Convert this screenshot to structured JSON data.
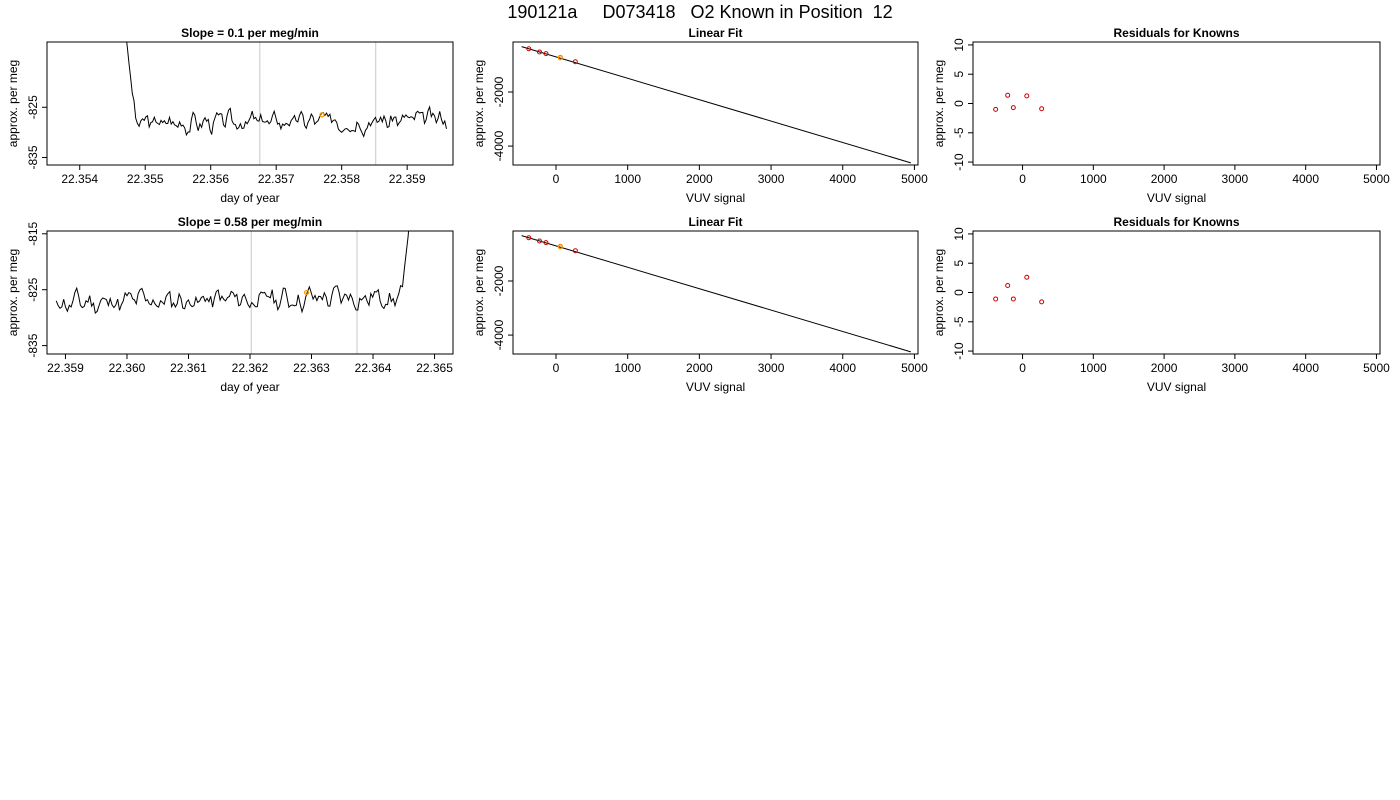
{
  "page_title": "190121a     D073418   O2 Known in Position  12",
  "colors": {
    "trace": "#000000",
    "marker": "#cc0000",
    "highlight": "#ff9900",
    "vline": "#c8c8c8",
    "frame": "#000000"
  },
  "chart_data": [
    {
      "id": "ts1",
      "type": "line",
      "title": "Slope =  0.1  per meg/min",
      "xlabel": "day of year",
      "ylabel": "approx. per meg",
      "xlim": [
        22.3535,
        22.3597
      ],
      "ylim": [
        -836.5,
        -812
      ],
      "xticks": [
        "22.354",
        "22.355",
        "22.356",
        "22.357",
        "22.358",
        "22.359"
      ],
      "yticks": [
        "-825",
        "-835"
      ],
      "x_start": 22.3547,
      "x_end": 22.3596,
      "seed": 3,
      "base": -827.8,
      "trend": 0.8,
      "amp": 1.6,
      "spike": "start",
      "spike_value": -810,
      "vlines": [
        22.35675,
        22.35852
      ],
      "highlight_point": [
        22.3577,
        -826.5
      ]
    },
    {
      "id": "fit1",
      "type": "line",
      "title": "Linear Fit",
      "xlabel": "VUV signal",
      "ylabel": "approx. per meg",
      "xlim": [
        -600,
        5050
      ],
      "ylim": [
        -4700,
        -150
      ],
      "xticks": [
        "0",
        "1000",
        "2000",
        "3000",
        "4000",
        "5000"
      ],
      "yticks": [
        "-2000",
        "-4000"
      ],
      "line": [
        [
          -480,
          -320
        ],
        [
          4950,
          -4620
        ]
      ],
      "points": [
        [
          -380,
          -400
        ],
        [
          -230,
          -520
        ],
        [
          -140,
          -580
        ],
        [
          60,
          -720
        ],
        [
          270,
          -880
        ]
      ],
      "highlight_point": [
        60,
        -730
      ]
    },
    {
      "id": "res1",
      "type": "scatter",
      "title": "Residuals for Knowns",
      "xlabel": "VUV signal",
      "ylabel": "approx. per meg",
      "xlim": [
        -700,
        5050
      ],
      "ylim": [
        -10.5,
        10.5
      ],
      "xticks": [
        "0",
        "1000",
        "2000",
        "3000",
        "4000",
        "5000"
      ],
      "yticks": [
        "10",
        "5",
        "0",
        "-5",
        "-10"
      ],
      "points": [
        [
          -380,
          -1.0
        ],
        [
          -210,
          1.4
        ],
        [
          -130,
          -0.7
        ],
        [
          60,
          1.3
        ],
        [
          270,
          -0.9
        ]
      ]
    },
    {
      "id": "ts2",
      "type": "line",
      "title": "Slope =  0.58  per meg/min",
      "xlabel": "day of year",
      "ylabel": "approx. per meg",
      "xlim": [
        22.3587,
        22.3653
      ],
      "ylim": [
        -836.5,
        -814.5
      ],
      "xticks": [
        "22.359",
        "22.360",
        "22.361",
        "22.362",
        "22.363",
        "22.364",
        "22.365"
      ],
      "yticks": [
        "-815",
        "-825",
        "-835"
      ],
      "x_start": 22.35885,
      "x_end": 22.3646,
      "seed": 11,
      "base": -826.8,
      "trend": 1.2,
      "amp": 1.7,
      "spike": "end",
      "spike_value": -813,
      "vlines": [
        22.36202,
        22.36374
      ],
      "highlight_point": [
        22.36292,
        -825.5
      ]
    },
    {
      "id": "fit2",
      "type": "line",
      "title": "Linear Fit",
      "xlabel": "VUV signal",
      "ylabel": "approx. per meg",
      "xlim": [
        -600,
        5050
      ],
      "ylim": [
        -4700,
        -150
      ],
      "xticks": [
        "0",
        "1000",
        "2000",
        "3000",
        "4000",
        "5000"
      ],
      "yticks": [
        "-2000",
        "-4000"
      ],
      "line": [
        [
          -480,
          -320
        ],
        [
          4950,
          -4620
        ]
      ],
      "points": [
        [
          -380,
          -400
        ],
        [
          -230,
          -520
        ],
        [
          -140,
          -580
        ],
        [
          60,
          -720
        ],
        [
          270,
          -880
        ]
      ],
      "highlight_point": [
        60,
        -730
      ]
    },
    {
      "id": "res2",
      "type": "scatter",
      "title": "Residuals for Knowns",
      "xlabel": "VUV signal",
      "ylabel": "approx. per meg",
      "xlim": [
        -700,
        5050
      ],
      "ylim": [
        -10.5,
        10.5
      ],
      "xticks": [
        "0",
        "1000",
        "2000",
        "3000",
        "4000",
        "5000"
      ],
      "yticks": [
        "10",
        "5",
        "0",
        "-5",
        "-10"
      ],
      "points": [
        [
          -380,
          -1.1
        ],
        [
          -210,
          1.2
        ],
        [
          -130,
          -1.1
        ],
        [
          60,
          2.6
        ],
        [
          270,
          -1.6
        ]
      ]
    }
  ]
}
